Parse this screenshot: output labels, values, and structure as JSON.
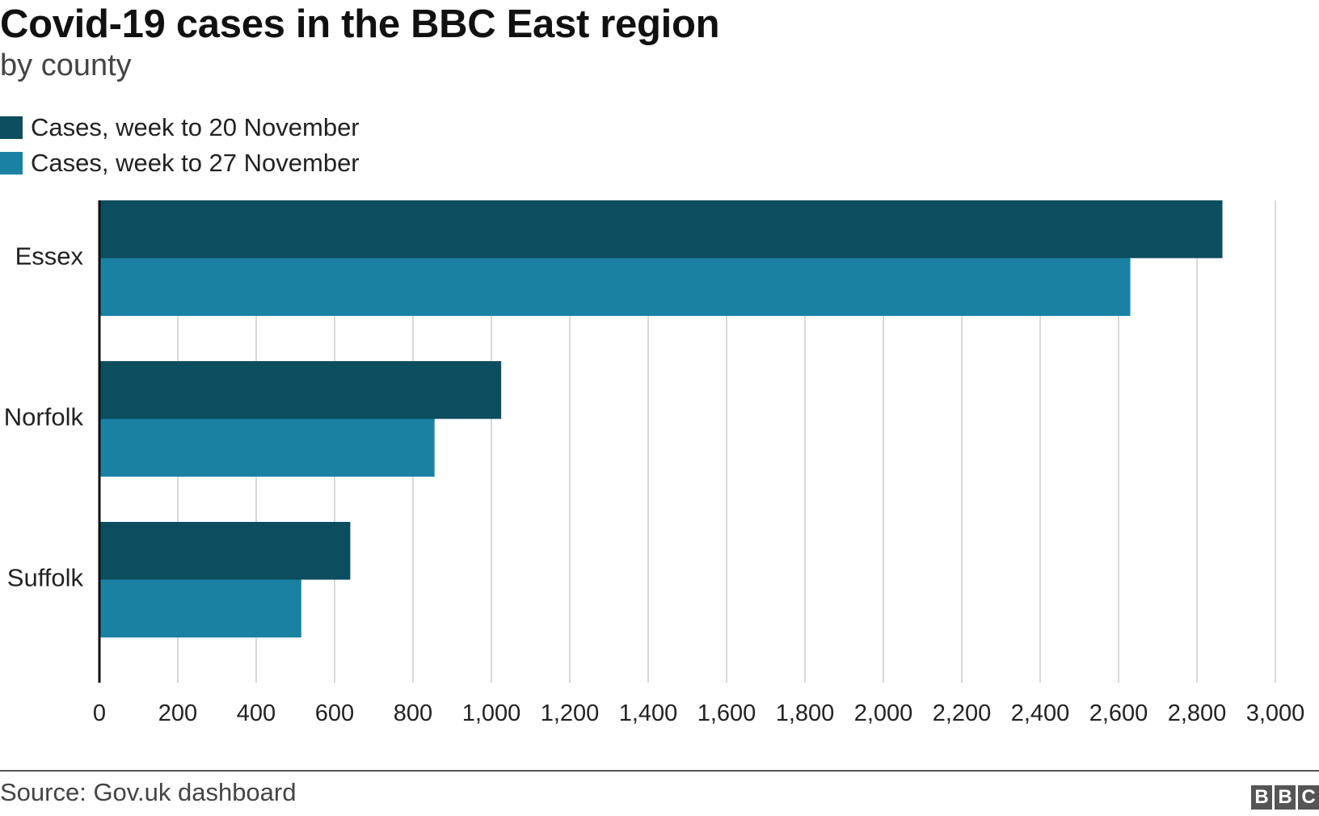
{
  "header": {
    "title": "Covid-19 cases in the BBC East region",
    "subtitle": "by county"
  },
  "legend": {
    "items": [
      {
        "label": "Cases, week to 20 November",
        "color": "#0c4d5f"
      },
      {
        "label": "Cases, week to 27 November",
        "color": "#1a81a3"
      }
    ]
  },
  "chart_data": {
    "type": "bar",
    "orientation": "horizontal",
    "categories": [
      "Essex",
      "Norfolk",
      "Suffolk"
    ],
    "series": [
      {
        "name": "Cases, week to 20 November",
        "values": [
          2865,
          1025,
          640
        ],
        "color": "#0c4d5f"
      },
      {
        "name": "Cases, week to 27 November",
        "values": [
          2630,
          855,
          515
        ],
        "color": "#1a81a3"
      }
    ],
    "xlim": [
      0,
      3000
    ],
    "xticks": [
      0,
      200,
      400,
      600,
      800,
      1000,
      1200,
      1400,
      1600,
      1800,
      2000,
      2200,
      2400,
      2600,
      2800,
      3000
    ],
    "xtick_labels": [
      "0",
      "200",
      "400",
      "600",
      "800",
      "1,000",
      "1,200",
      "1,400",
      "1,600",
      "1,800",
      "2,000",
      "2,200",
      "2,400",
      "2,600",
      "2,800",
      "3,000"
    ],
    "grid": "vertical",
    "legend_position": "top-left"
  },
  "footer": {
    "source": "Source: Gov.uk dashboard",
    "logo_letters": [
      "B",
      "B",
      "C"
    ]
  }
}
